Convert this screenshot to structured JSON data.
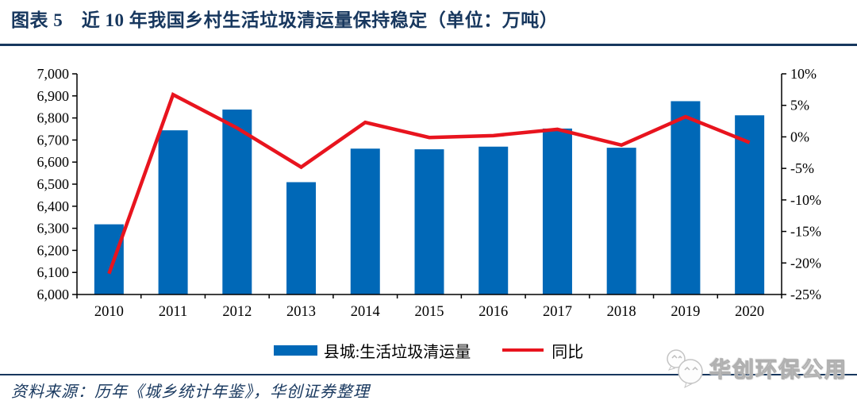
{
  "header": {
    "title": "图表 5　近 10 年我国乡村生活垃圾清运量保持稳定（单位：万吨）"
  },
  "footer": {
    "source": "资料来源：历年《城乡统计年鉴》，华创证券整理"
  },
  "watermark": {
    "label": "华创环保公用",
    "icon": "wechat-bubbles-icon"
  },
  "colors": {
    "bar": "#0068B7",
    "line": "#E8141E",
    "accent_navy": "#17375E",
    "axis": "#000000"
  },
  "chart_data": {
    "type": "bar",
    "title": "近 10 年我国乡村生活垃圾清运量保持稳定",
    "unit": "万吨",
    "categories": [
      "2010",
      "2011",
      "2012",
      "2013",
      "2014",
      "2015",
      "2016",
      "2017",
      "2018",
      "2019",
      "2020"
    ],
    "series": [
      {
        "name": "县城:生活垃圾清运量",
        "type": "bar",
        "axis": "left",
        "color": "#0068B7",
        "values": [
          6318,
          6744,
          6838,
          6509,
          6661,
          6658,
          6670,
          6752,
          6665,
          6876,
          6812
        ]
      },
      {
        "name": "同比",
        "type": "line",
        "axis": "right",
        "color": "#E8141E",
        "values": [
          -21.7,
          6.7,
          1.4,
          -4.8,
          2.3,
          -0.1,
          0.2,
          1.2,
          -1.3,
          3.2,
          -0.9
        ]
      }
    ],
    "left_axis": {
      "min": 6000,
      "max": 7000,
      "step": 100,
      "tick_labels": [
        "6,000",
        "6,100",
        "6,200",
        "6,300",
        "6,400",
        "6,500",
        "6,600",
        "6,700",
        "6,800",
        "6,900",
        "7,000"
      ]
    },
    "right_axis": {
      "min": -25,
      "max": 10,
      "step": 5,
      "tick_labels": [
        "-25%",
        "-20%",
        "-15%",
        "-10%",
        "-5%",
        "0%",
        "5%",
        "10%"
      ]
    },
    "grid": false,
    "legend_position": "bottom"
  }
}
